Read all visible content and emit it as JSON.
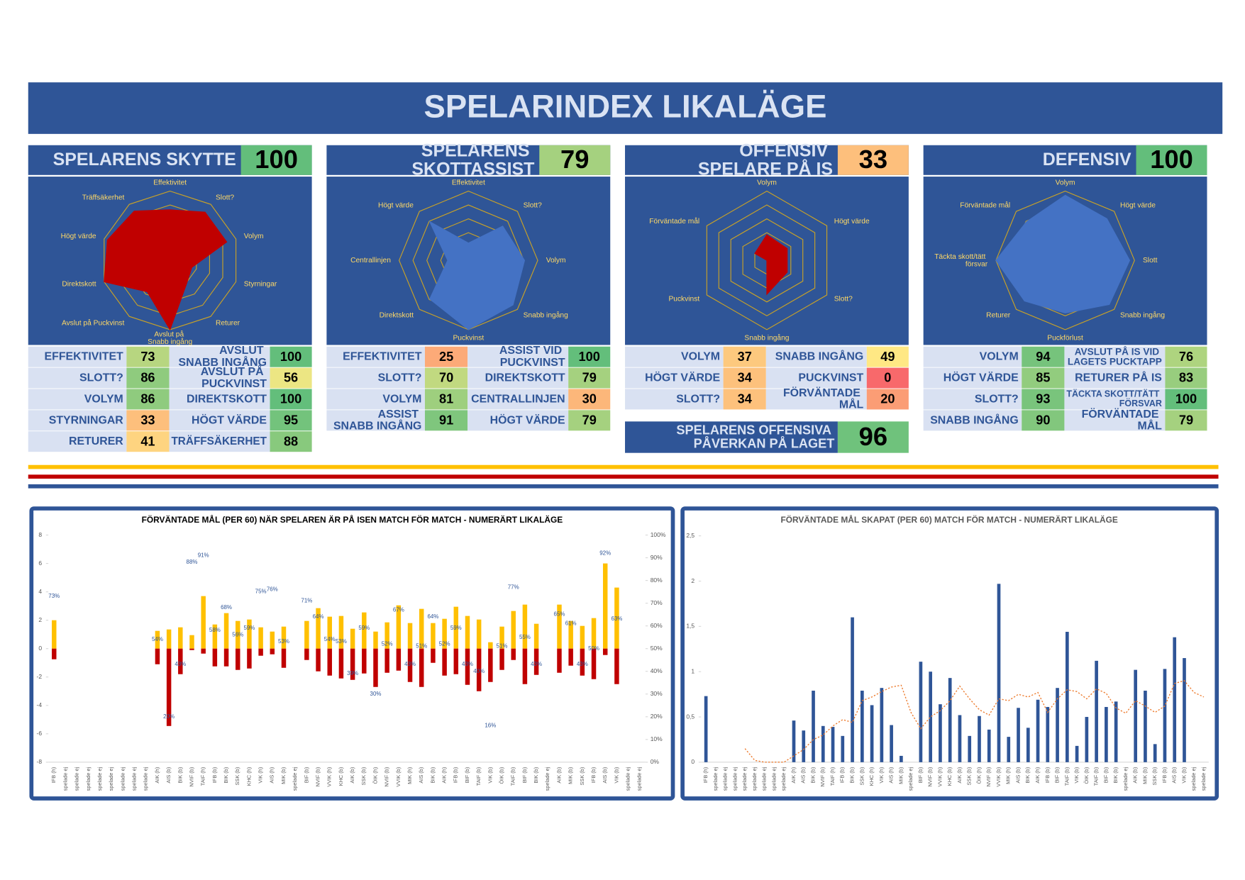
{
  "title": "SPELARINDEX LIKALÄGE",
  "panels": [
    {
      "title": "SPELARENS SKYTTE",
      "score": 100,
      "radar": {
        "axes": [
          "Effektivitet",
          "Slott?",
          "Volym",
          "Styrningar",
          "Returer",
          "Avslut på Snabb ingång",
          "Avslut på Puckvinst",
          "Direktskott",
          "Högt värde",
          "Träffsäkerhet"
        ],
        "values": [
          73,
          86,
          86,
          33,
          41,
          100,
          56,
          100,
          95,
          88
        ],
        "rlim": [
          0,
          100
        ],
        "color": "#c00000"
      },
      "columns": [
        [
          {
            "label": "EFFEKTIVITET",
            "value": 73
          },
          {
            "label": "SLOTT?",
            "value": 86
          },
          {
            "label": "VOLYM",
            "value": 86
          },
          {
            "label": "STYRNINGAR",
            "value": 33
          },
          {
            "label": "RETURER",
            "value": 41
          }
        ],
        [
          {
            "label": "AVSLUT SNABB INGÅNG",
            "value": 100
          },
          {
            "label": "AVSLUT PÅ PUCKVINST",
            "value": 56
          },
          {
            "label": "DIREKTSKOTT",
            "value": 100
          },
          {
            "label": "HÖGT VÄRDE",
            "value": 95
          },
          {
            "label": "TRÄFFSÄKERHET",
            "value": 88
          }
        ]
      ]
    },
    {
      "title": "SPELARENS SKOTTASSIST",
      "score": 79,
      "radar": {
        "axes": [
          "Effektivitet",
          "Slott?",
          "Volym",
          "Snabb ingång",
          "Puckvinst",
          "Direktskott",
          "Centrallinjen",
          "Högt värde"
        ],
        "values": [
          25,
          70,
          81,
          91,
          100,
          79,
          30,
          79
        ],
        "rlim": [
          0,
          100
        ],
        "color": "#4472c4"
      },
      "columns": [
        [
          {
            "label": "EFFEKTIVITET",
            "value": 25
          },
          {
            "label": "SLOTT?",
            "value": 70
          },
          {
            "label": "VOLYM",
            "value": 81
          },
          {
            "label": "ASSIST SNABB INGÅNG",
            "value": 91
          }
        ],
        [
          {
            "label": "ASSIST VID PUCKVINST",
            "value": 100
          },
          {
            "label": "DIREKTSKOTT",
            "value": 79
          },
          {
            "label": "CENTRALLINJEN",
            "value": 30
          },
          {
            "label": "HÖGT VÄRDE",
            "value": 79
          }
        ]
      ]
    },
    {
      "title": "OFFENSIV SPELARE PÅ IS",
      "score": 33,
      "radar": {
        "axes": [
          "Volym",
          "Högt värde",
          "Slott?",
          "Snabb ingång",
          "Puckvinst",
          "Förväntade mål"
        ],
        "values": [
          37,
          34,
          34,
          49,
          0,
          20
        ],
        "rlim": [
          0,
          100
        ],
        "color": "#c00000"
      },
      "columns": [
        [
          {
            "label": "VOLYM",
            "value": 37
          },
          {
            "label": "HÖGT VÄRDE",
            "value": 34
          },
          {
            "label": "SLOTT?",
            "value": 34
          }
        ],
        [
          {
            "label": "SNABB INGÅNG",
            "value": 49
          },
          {
            "label": "PUCKVINST",
            "value": 0
          },
          {
            "label": "FÖRVÄNTADE MÅL",
            "value": 20
          }
        ]
      ],
      "impact": {
        "label": "SPELARENS OFFENSIVA PÅVERKAN PÅ LAGET",
        "value": 96
      }
    },
    {
      "title": "DEFENSIV",
      "score": 100,
      "radar": {
        "axes": [
          "Volym",
          "Högt värde",
          "Slott",
          "Snabb ingång",
          "Puckförlust",
          "Returer",
          "Täckta skott/tätt försvar",
          "Förväntade mål"
        ],
        "values": [
          94,
          85,
          93,
          90,
          76,
          83,
          100,
          79
        ],
        "rlim": [
          0,
          100
        ],
        "color": "#4472c4"
      },
      "columns": [
        [
          {
            "label": "VOLYM",
            "value": 94
          },
          {
            "label": "HÖGT VÄRDE",
            "value": 85
          },
          {
            "label": "SLOTT?",
            "value": 93
          },
          {
            "label": "SNABB INGÅNG",
            "value": 90
          }
        ],
        [
          {
            "label": "AVSLUT PÅ IS VID LAGETS PUCKTAPP",
            "value": 76
          },
          {
            "label": "RETURER PÅ IS",
            "value": 83
          },
          {
            "label": "TÄCKTA SKOTT/TÄTT FÖRSVAR",
            "value": 100
          },
          {
            "label": "FÖRVÄNTADE MÅL",
            "value": 79
          }
        ]
      ]
    }
  ],
  "chart_data": [
    {
      "type": "bar",
      "title": "FÖRVÄNTADE MÅL (PER 60) NÄR SPELAREN ÄR PÅ ISEN MATCH FÖR MATCH - NUMERÄRT LIKALÄGE",
      "categories": [
        "IFB (h)",
        "spelade ej",
        "spelade ej",
        "spelade ej",
        "spelade ej",
        "spelade ej",
        "spelade ej",
        "spelade ej",
        "spelade ej",
        "AIK (h)",
        "AIS (b)",
        "BIK (b)",
        "NVIF (b)",
        "TAIF (h)",
        "IFB (b)",
        "BIK (b)",
        "SSK (b)",
        "KHC (h)",
        "VIK (h)",
        "AIS (h)",
        "MIK (b)",
        "spelade ej",
        "BIF (b)",
        "NVIF (b)",
        "VVIK (h)",
        "KHC (b)",
        "AIK (b)",
        "SSK (b)",
        "ÖIK (h)",
        "NVIF (b)",
        "VVIK (b)",
        "MIK (h)",
        "AIS (b)",
        "BIK (b)",
        "AIK (h)",
        "IFB (b)",
        "BIF (b)",
        "TAIF (b)",
        "VIK (b)",
        "ÖIK (b)",
        "TAIF (b)",
        "BIF (b)",
        "BIK (b)",
        "spelade ej",
        "AIK (b)",
        "MIK (b)",
        "SSK (b)",
        "IFB (b)",
        "AIS (b)",
        "VIK (b)",
        "spelade ej",
        "spelade ej"
      ],
      "series": [
        {
          "color": "#ffc000",
          "values": [
            2.0,
            null,
            null,
            null,
            null,
            null,
            null,
            null,
            null,
            1.25,
            1.35,
            1.5,
            0.95,
            3.7,
            1.7,
            2.5,
            1.95,
            2.05,
            1.5,
            1.2,
            1.55,
            null,
            1.95,
            2.85,
            2.25,
            2.3,
            1.4,
            2.55,
            1.2,
            1.85,
            3.05,
            1.8,
            2.8,
            1.8,
            2.1,
            2.95,
            2.3,
            2.05,
            0.45,
            1.55,
            2.65,
            3.1,
            1.75,
            null,
            3.1,
            1.95,
            1.6,
            2.15,
            6.0,
            4.3,
            null,
            null
          ]
        },
        {
          "color": "#c00000",
          "values": [
            -0.75,
            null,
            null,
            null,
            null,
            null,
            null,
            null,
            null,
            -1.1,
            -5.45,
            -1.8,
            -0.1,
            -0.35,
            -1.25,
            -1.25,
            -1.5,
            -1.4,
            -0.5,
            -0.4,
            -1.35,
            null,
            -0.8,
            -1.6,
            -1.9,
            -2.1,
            -2.2,
            -1.75,
            -2.7,
            -1.7,
            -1.55,
            -2.35,
            -2.7,
            -1.0,
            -1.9,
            -1.8,
            -2.55,
            -3.0,
            -2.35,
            -1.5,
            -0.8,
            -2.5,
            -1.85,
            null,
            -1.7,
            -1.2,
            -1.9,
            -2.15,
            -0.45,
            -2.5,
            null,
            null
          ]
        },
        {
          "axis": "y2",
          "color": "#2f5597",
          "values": [
            73,
            null,
            null,
            null,
            null,
            null,
            null,
            null,
            null,
            54,
            20,
            43,
            88,
            91,
            58,
            68,
            56,
            59,
            75,
            76,
            53,
            null,
            71,
            64,
            54,
            53,
            39,
            59,
            30,
            52,
            67,
            43,
            51,
            64,
            52,
            59,
            43,
            40,
            16,
            51,
            77,
            55,
            43,
            null,
            65,
            61,
            43,
            50,
            92,
            63,
            null,
            null
          ],
          "value_labels": [
            "73%",
            null,
            null,
            null,
            null,
            null,
            null,
            null,
            null,
            "54%",
            "20%",
            "43%",
            "88%",
            "91%",
            "58%",
            "68%",
            "56%",
            "59%",
            "75%",
            "76%",
            "53%",
            null,
            "71%",
            "64%",
            "54%",
            "53%",
            "39%",
            "59%",
            "30%",
            "52%",
            "67%",
            "43%",
            "51%",
            "64%",
            "52%",
            "59%",
            "43%",
            "40%",
            "16%",
            "51%",
            "77%",
            "55%",
            "43%",
            null,
            "65%",
            "61%",
            "43%",
            "50%",
            "92%",
            "63%",
            null,
            null
          ]
        }
      ],
      "ylim": [
        -8,
        8
      ],
      "yticks": [
        -8,
        -6,
        -4,
        -2,
        0,
        2,
        4,
        6,
        8
      ],
      "y2lim": [
        0,
        100
      ],
      "y2ticks": [
        {
          "value": 0,
          "label": "0%"
        },
        {
          "value": 10,
          "label": "10%"
        },
        {
          "value": 20,
          "label": "20%"
        },
        {
          "value": 30,
          "label": "30%"
        },
        {
          "value": 40,
          "label": "40%"
        },
        {
          "value": 50,
          "label": "50%"
        },
        {
          "value": 60,
          "label": "60%"
        },
        {
          "value": 70,
          "label": "70%"
        },
        {
          "value": 80,
          "label": "80%"
        },
        {
          "value": 90,
          "label": "90%"
        },
        {
          "value": 100,
          "label": "100%"
        }
      ],
      "grid": false
    },
    {
      "type": "bar_line",
      "title": "FÖRVÄNTADE MÅL SKAPAT (PER 60) MATCH FÖR MATCH - NUMERÄRT LIKALÄGE",
      "categories": [
        "IFB (h)",
        "spelade ej",
        "spelade ej",
        "spelade ej",
        "spelade ej",
        "spelade ej",
        "spelade ej",
        "spelade ej",
        "spelade ej",
        "AIK (h)",
        "AIS (b)",
        "BIK (b)",
        "NVIF (b)",
        "TAIF (h)",
        "IFB (b)",
        "BIK (b)",
        "SSK (b)",
        "KHC (h)",
        "VIK (h)",
        "AIS (h)",
        "MIK (b)",
        "spelade ej",
        "BIF (b)",
        "NVIF (b)",
        "VVIK (h)",
        "KHC (b)",
        "AIK (b)",
        "SSK (b)",
        "ÖIK (h)",
        "NVIF (b)",
        "VVIK (b)",
        "MIK (h)",
        "AIS (b)",
        "BIK (b)",
        "AIK (h)",
        "IFB (b)",
        "BIF (b)",
        "TAIF (b)",
        "VIK (b)",
        "ÖIK (b)",
        "TAIF (b)",
        "BIF (b)",
        "BIK (b)",
        "spelade ej",
        "AIK (b)",
        "MIK (b)",
        "SSK (b)",
        "IFB (b)",
        "AIS (b)",
        "VIK (b)",
        "spelade ej",
        "spelade ej"
      ],
      "series": [
        {
          "kind": "bar",
          "color": "#2f5597",
          "values": [
            0.73,
            null,
            null,
            null,
            null,
            null,
            null,
            null,
            null,
            0.46,
            0.35,
            0.79,
            0.4,
            0.39,
            0.29,
            1.6,
            0.79,
            0.63,
            0.82,
            0.41,
            0.07,
            null,
            1.11,
            1.0,
            0.64,
            0.93,
            0.52,
            0.29,
            0.51,
            0.36,
            1.97,
            0.28,
            0.6,
            0.38,
            0.69,
            0.61,
            0.82,
            1.44,
            0.18,
            0.5,
            1.12,
            0.61,
            0.67,
            null,
            1.02,
            0.79,
            0.2,
            1.03,
            1.38,
            1.15,
            null,
            null
          ]
        },
        {
          "kind": "line",
          "color": "#ed7d31",
          "values": [
            null,
            null,
            null,
            null,
            0.15,
            0.02,
            0,
            0,
            0,
            0.07,
            0.14,
            0.25,
            0.3,
            0.4,
            0.47,
            0.44,
            0.68,
            0.72,
            0.78,
            0.83,
            0.85,
            0.55,
            0.37,
            0.5,
            0.57,
            0.68,
            0.84,
            0.7,
            0.58,
            0.52,
            0.7,
            0.68,
            0.75,
            0.72,
            0.77,
            0.55,
            0.7,
            0.8,
            0.78,
            0.7,
            0.81,
            0.76,
            0.6,
            0.54,
            0.68,
            0.62,
            0.55,
            0.62,
            0.87,
            0.9,
            0.77,
            0.72
          ]
        }
      ],
      "ylim": [
        0,
        2.5
      ],
      "yticks": [
        0,
        {
          "value": 0.5,
          "label": "0,5"
        },
        1,
        {
          "value": 1.5,
          "label": "1,5"
        },
        2,
        {
          "value": 2.5,
          "label": "2,5"
        }
      ],
      "grid": false
    }
  ]
}
